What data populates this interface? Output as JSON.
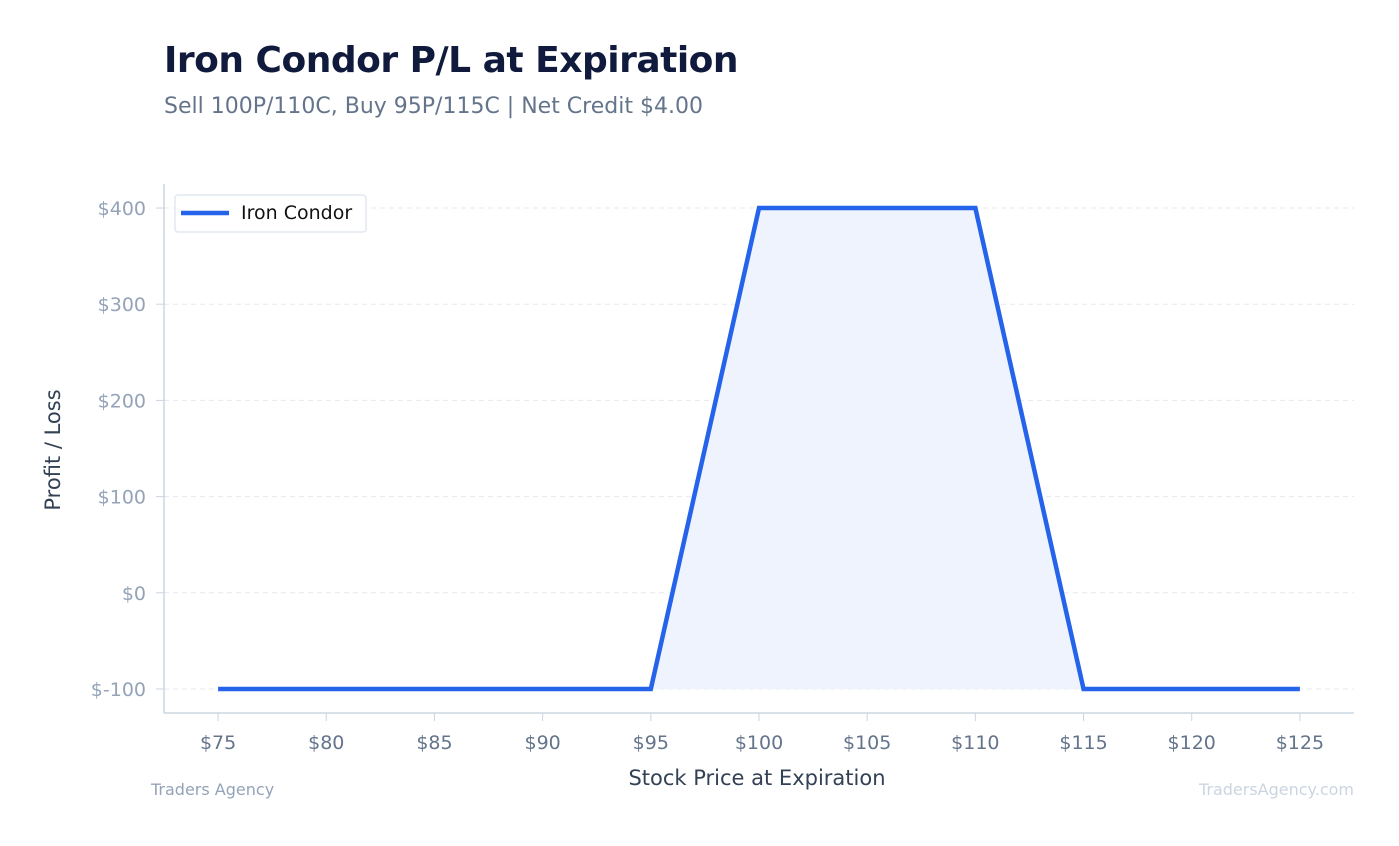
{
  "title": "Iron Condor P/L at Expiration",
  "subtitle": "Sell 100P/110C, Buy 95P/115C | Net Credit $4.00",
  "footer": {
    "left": "Traders Agency",
    "right": "TradersAgency.com"
  },
  "chart_data": {
    "type": "line",
    "title": "Iron Condor P/L at Expiration",
    "xlabel": "Stock Price at Expiration",
    "ylabel": "Profit / Loss",
    "xlim": [
      72.5,
      127.5
    ],
    "ylim": [
      -125,
      425
    ],
    "x_ticks": [
      75,
      80,
      85,
      90,
      95,
      100,
      105,
      110,
      115,
      120,
      125
    ],
    "x_tick_labels": [
      "$75",
      "$80",
      "$85",
      "$90",
      "$95",
      "$100",
      "$105",
      "$110",
      "$115",
      "$120",
      "$125"
    ],
    "y_ticks": [
      -100,
      0,
      100,
      200,
      300,
      400
    ],
    "y_tick_labels": [
      "$-100",
      "$0",
      "$100",
      "$200",
      "$300",
      "$400"
    ],
    "grid": "horizontal dashed",
    "legend_position": "top-left",
    "fill_to": -100,
    "series": [
      {
        "name": "Iron Condor",
        "color": "#2563eb",
        "fill_color": "#eef3fd",
        "x": [
          75,
          95,
          100,
          110,
          115,
          125
        ],
        "y": [
          -100,
          -100,
          400,
          400,
          -100,
          -100
        ]
      }
    ]
  }
}
